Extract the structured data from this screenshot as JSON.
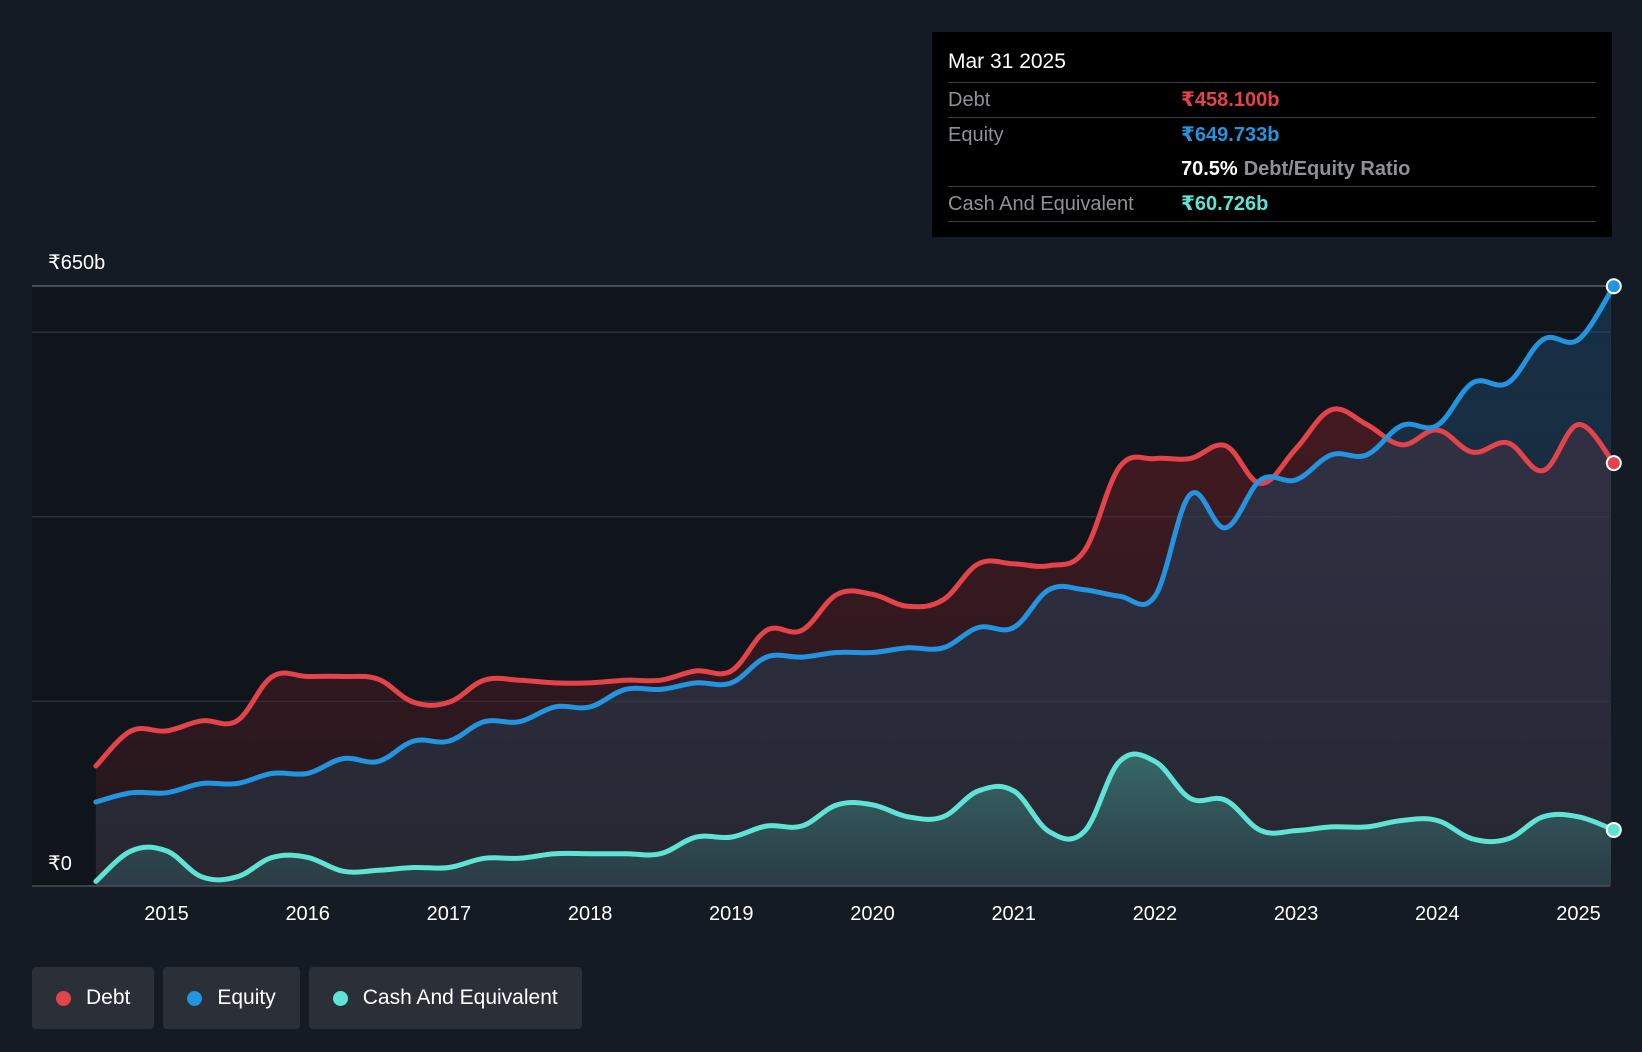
{
  "chart_data": {
    "type": "area",
    "title": "",
    "y_axis": {
      "max_label": "₹650b",
      "min_label": "₹0",
      "ylim": [
        0,
        650
      ]
    },
    "x_ticks": [
      "2015",
      "2016",
      "2017",
      "2018",
      "2019",
      "2020",
      "2021",
      "2022",
      "2023",
      "2024",
      "2025"
    ],
    "x": [
      2014.5,
      2014.75,
      2015.0,
      2015.25,
      2015.5,
      2015.75,
      2016.0,
      2016.25,
      2016.5,
      2016.75,
      2017.0,
      2017.25,
      2017.5,
      2017.75,
      2018.0,
      2018.25,
      2018.5,
      2018.75,
      2019.0,
      2019.25,
      2019.5,
      2019.75,
      2020.0,
      2020.25,
      2020.5,
      2020.75,
      2021.0,
      2021.25,
      2021.5,
      2021.75,
      2022.0,
      2022.25,
      2022.5,
      2022.75,
      2023.0,
      2023.25,
      2023.5,
      2023.75,
      2024.0,
      2024.25,
      2024.5,
      2024.75,
      2025.0,
      2025.25
    ],
    "series": [
      {
        "name": "Debt",
        "color": "#e5434a",
        "values": [
          130,
          168,
          168,
          179,
          179,
          227,
          227,
          227,
          224,
          199,
          199,
          223,
          223,
          220,
          220,
          223,
          223,
          233,
          233,
          277,
          277,
          316,
          316,
          303,
          310,
          349,
          349,
          347,
          363,
          454,
          463,
          463,
          477,
          436,
          474,
          516,
          500,
          478,
          494,
          470,
          480,
          450,
          500,
          458.1
        ]
      },
      {
        "name": "Equity",
        "color": "#2394df",
        "values": [
          91,
          101,
          101,
          111,
          111,
          122,
          122,
          138,
          135,
          157,
          157,
          178,
          178,
          194,
          194,
          213,
          213,
          220,
          220,
          248,
          248,
          253,
          253,
          258,
          258,
          280,
          280,
          321,
          321,
          314,
          314,
          424,
          388,
          440,
          440,
          467,
          467,
          499,
          499,
          545,
          545,
          592,
          592,
          649.733
        ]
      },
      {
        "name": "Cash And Equivalent",
        "color": "#5fe3d2",
        "values": [
          5,
          38,
          38,
          10,
          10,
          31,
          31,
          16,
          17,
          20,
          20,
          30,
          30,
          35,
          35,
          35,
          35,
          53,
          53,
          65,
          65,
          88,
          88,
          75,
          75,
          103,
          103,
          59,
          59,
          135,
          135,
          95,
          93,
          60,
          60,
          64,
          64,
          71,
          71,
          51,
          51,
          75,
          75,
          60.726
        ]
      }
    ],
    "legend": [
      "Debt",
      "Equity",
      "Cash And Equivalent"
    ]
  },
  "tooltip": {
    "date": "Mar 31 2025",
    "debt_label": "Debt",
    "debt_value": "₹458.100b",
    "equity_label": "Equity",
    "equity_value": "₹649.733b",
    "ratio_value": "70.5%",
    "ratio_label": "Debt/Equity Ratio",
    "cash_label": "Cash And Equivalent",
    "cash_value": "₹60.726b"
  },
  "colors": {
    "debt": "#e5434a",
    "equity": "#2394df",
    "cash": "#5fe3d2"
  }
}
